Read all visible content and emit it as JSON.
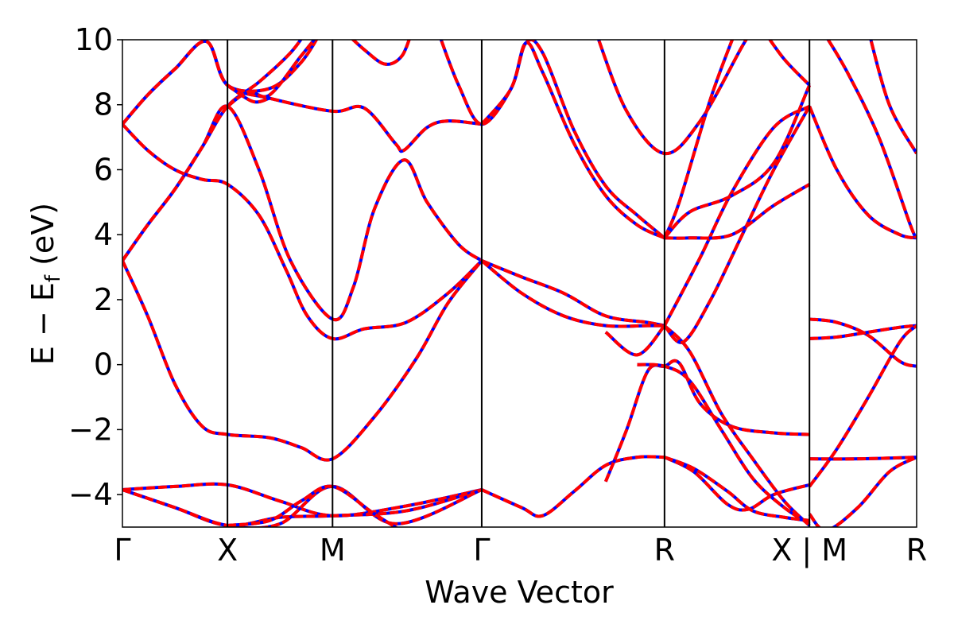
{
  "chart_data": {
    "type": "line",
    "title": "",
    "xlabel": "Wave Vector",
    "ylabel": "E − E_f (eV)",
    "ylabel_parts": {
      "main": "E − E",
      "sub": "f",
      "unit": " (eV)"
    },
    "ylim": [
      -5,
      10
    ],
    "xlim": [
      0,
      3.78
    ],
    "yticks": [
      -4,
      -2,
      0,
      2,
      4,
      6,
      8,
      10
    ],
    "ytick_labels": [
      "−4",
      "−2",
      "0",
      "2",
      "4",
      "6",
      "8",
      "10"
    ],
    "kpoints": [
      {
        "label": "Γ",
        "x": 0.0
      },
      {
        "label": "X",
        "x": 0.5
      },
      {
        "label": "M",
        "x": 1.0
      },
      {
        "label": "Γ",
        "x": 1.71
      },
      {
        "label": "R",
        "x": 2.58
      },
      {
        "label": "X | M",
        "x": 3.27
      },
      {
        "label": "R",
        "x": 3.78
      }
    ],
    "grid": false,
    "legend": "none",
    "colors": {
      "series_a": "#0000ff",
      "series_b": "#ff0000"
    },
    "series": [
      {
        "values": [
          [
            [
              0,
              -3.85
            ],
            [
              0.25,
              -3.75
            ],
            [
              0.5,
              -3.7
            ],
            [
              0.75,
              -4.2
            ],
            [
              1.0,
              -4.65
            ],
            [
              1.35,
              -4.35
            ],
            [
              1.71,
              -3.85
            ]
          ],
          [
            [
              0,
              -3.85
            ],
            [
              0.25,
              -4.4
            ],
            [
              0.5,
              -4.95
            ],
            [
              0.75,
              -4.7
            ],
            [
              1.0,
              -4.65
            ],
            [
              1.35,
              -4.5
            ],
            [
              1.71,
              -3.85
            ]
          ],
          [
            [
              0,
              -3.85
            ],
            [
              0.25,
              -4.4
            ],
            [
              0.5,
              -4.95
            ],
            [
              0.75,
              -4.9
            ],
            [
              1.0,
              -3.75
            ],
            [
              1.3,
              -4.9
            ],
            [
              1.71,
              -3.85
            ]
          ],
          [
            [
              0.5,
              -4.95
            ],
            [
              0.7,
              -4.8
            ],
            [
              0.85,
              -4.2
            ],
            [
              1.0,
              -3.75
            ],
            [
              1.2,
              -4.6
            ],
            [
              1.35,
              -5.2
            ]
          ],
          [
            [
              0,
              3.2
            ],
            [
              0.12,
              1.5
            ],
            [
              0.25,
              -0.6
            ],
            [
              0.38,
              -1.9
            ],
            [
              0.5,
              -2.15
            ],
            [
              0.7,
              -2.25
            ],
            [
              0.85,
              -2.55
            ],
            [
              1.0,
              -2.9
            ],
            [
              1.2,
              -1.6
            ],
            [
              1.4,
              0.2
            ],
            [
              1.55,
              1.9
            ],
            [
              1.71,
              3.2
            ]
          ],
          [
            [
              0,
              3.2
            ],
            [
              0.12,
              4.3
            ],
            [
              0.25,
              5.4
            ],
            [
              0.38,
              6.7
            ],
            [
              0.5,
              7.95
            ],
            [
              0.65,
              6.0
            ],
            [
              0.8,
              3.2
            ],
            [
              1.0,
              1.4
            ],
            [
              1.1,
              2.4
            ],
            [
              1.2,
              4.8
            ],
            [
              1.34,
              6.3
            ],
            [
              1.45,
              5.0
            ],
            [
              1.6,
              3.7
            ],
            [
              1.71,
              3.2
            ]
          ],
          [
            [
              0,
              3.2
            ],
            [
              0.12,
              4.3
            ],
            [
              0.25,
              5.4
            ],
            [
              0.38,
              6.7
            ],
            [
              0.5,
              7.95
            ],
            [
              0.65,
              8.7
            ],
            [
              0.8,
              9.6
            ],
            [
              0.88,
              10.3
            ]
          ],
          [
            [
              0,
              7.4
            ],
            [
              0.12,
              6.6
            ],
            [
              0.25,
              6.0
            ],
            [
              0.38,
              5.7
            ],
            [
              0.5,
              5.55
            ],
            [
              0.65,
              4.6
            ],
            [
              0.78,
              2.9
            ],
            [
              0.88,
              1.5
            ],
            [
              1.0,
              0.8
            ],
            [
              1.15,
              1.1
            ],
            [
              1.35,
              1.3
            ],
            [
              1.55,
              2.2
            ],
            [
              1.71,
              3.2
            ]
          ],
          [
            [
              0,
              7.4
            ],
            [
              0.12,
              8.3
            ],
            [
              0.25,
              9.1
            ],
            [
              0.4,
              9.95
            ],
            [
              0.5,
              8.6
            ],
            [
              0.7,
              8.2
            ],
            [
              1.0,
              7.8
            ],
            [
              1.15,
              7.9
            ],
            [
              1.3,
              6.8
            ],
            [
              1.34,
              6.6
            ],
            [
              1.45,
              7.3
            ],
            [
              1.55,
              7.5
            ],
            [
              1.71,
              7.4
            ]
          ],
          [
            [
              0,
              7.4
            ],
            [
              0.12,
              8.3
            ],
            [
              0.25,
              9.1
            ],
            [
              0.4,
              9.95
            ],
            [
              0.5,
              8.6
            ],
            [
              0.7,
              8.5
            ],
            [
              0.85,
              9.3
            ],
            [
              0.95,
              10.3
            ]
          ],
          [
            [
              0.5,
              7.95
            ],
            [
              0.6,
              8.4
            ],
            [
              0.7,
              8.3
            ],
            [
              0.85,
              9.5
            ],
            [
              0.95,
              10.3
            ]
          ],
          [
            [
              0.5,
              8.6
            ],
            [
              0.62,
              8.1
            ],
            [
              0.7,
              8.2
            ]
          ],
          [
            [
              1.05,
              10.3
            ],
            [
              1.15,
              9.7
            ],
            [
              1.25,
              9.25
            ],
            [
              1.33,
              9.5
            ],
            [
              1.38,
              10.3
            ]
          ],
          [
            [
              1.5,
              10.3
            ],
            [
              1.6,
              8.6
            ],
            [
              1.71,
              7.4
            ],
            [
              1.85,
              8.5
            ],
            [
              1.92,
              9.9
            ],
            [
              2.0,
              9.6
            ],
            [
              2.15,
              7.2
            ],
            [
              2.3,
              5.5
            ],
            [
              2.45,
              4.6
            ],
            [
              2.58,
              3.9
            ]
          ],
          [
            [
              1.71,
              7.4
            ],
            [
              1.85,
              8.5
            ],
            [
              1.92,
              9.9
            ],
            [
              2.0,
              9.0
            ],
            [
              2.15,
              6.8
            ],
            [
              2.3,
              5.2
            ],
            [
              2.45,
              4.3
            ],
            [
              2.58,
              3.9
            ]
          ],
          [
            [
              1.71,
              3.2
            ],
            [
              1.9,
              2.7
            ],
            [
              2.1,
              2.2
            ],
            [
              2.3,
              1.5
            ],
            [
              2.5,
              1.3
            ],
            [
              2.58,
              1.2
            ]
          ],
          [
            [
              1.71,
              3.2
            ],
            [
              1.9,
              2.2
            ],
            [
              2.1,
              1.5
            ],
            [
              2.3,
              1.2
            ],
            [
              2.5,
              1.2
            ],
            [
              2.58,
              1.2
            ]
          ],
          [
            [
              1.71,
              -3.85
            ],
            [
              1.9,
              -4.4
            ],
            [
              2.0,
              -4.65
            ],
            [
              2.15,
              -3.9
            ],
            [
              2.3,
              -3.1
            ],
            [
              2.45,
              -2.85
            ],
            [
              2.58,
              -2.85
            ]
          ],
          [
            [
              2.3,
              1.0
            ],
            [
              2.45,
              0.3
            ],
            [
              2.58,
              1.2
            ]
          ],
          [
            [
              2.3,
              -3.6
            ],
            [
              2.4,
              -2.0
            ],
            [
              2.5,
              -0.2
            ],
            [
              2.58,
              -0.05
            ],
            [
              2.65,
              0.05
            ],
            [
              2.75,
              -1.2
            ],
            [
              2.9,
              -1.9
            ],
            [
              3.1,
              -2.1
            ],
            [
              3.27,
              -2.15
            ]
          ],
          [
            [
              2.45,
              0.0
            ],
            [
              2.58,
              -0.05
            ],
            [
              2.7,
              -0.5
            ],
            [
              2.85,
              -2.0
            ],
            [
              3.0,
              -3.5
            ],
            [
              3.15,
              -4.4
            ],
            [
              3.27,
              -4.9
            ]
          ],
          [
            [
              2.58,
              1.2
            ],
            [
              2.7,
              0.4
            ],
            [
              2.85,
              -1.5
            ],
            [
              3.0,
              -2.9
            ],
            [
              3.15,
              -4.2
            ],
            [
              3.27,
              -4.95
            ]
          ],
          [
            [
              2.58,
              1.2
            ],
            [
              2.67,
              0.7
            ],
            [
              2.8,
              2.0
            ],
            [
              2.95,
              4.0
            ],
            [
              3.1,
              6.0
            ],
            [
              3.27,
              7.95
            ]
          ],
          [
            [
              2.58,
              1.2
            ],
            [
              2.75,
              3.3
            ],
            [
              2.9,
              5.3
            ],
            [
              3.1,
              7.3
            ],
            [
              3.27,
              7.95
            ]
          ],
          [
            [
              2.58,
              -2.85
            ],
            [
              2.72,
              -3.3
            ],
            [
              2.88,
              -4.3
            ],
            [
              2.98,
              -4.45
            ],
            [
              3.1,
              -4.0
            ],
            [
              3.27,
              -3.7
            ]
          ],
          [
            [
              2.58,
              -2.85
            ],
            [
              2.72,
              -3.2
            ],
            [
              2.88,
              -3.9
            ],
            [
              3.0,
              -4.5
            ],
            [
              3.15,
              -4.7
            ],
            [
              3.27,
              -4.8
            ]
          ],
          [
            [
              2.58,
              3.9
            ],
            [
              2.7,
              3.9
            ],
            [
              2.9,
              4.0
            ],
            [
              3.1,
              4.9
            ],
            [
              3.27,
              5.55
            ]
          ],
          [
            [
              2.58,
              3.9
            ],
            [
              2.7,
              4.7
            ],
            [
              2.9,
              5.2
            ],
            [
              3.1,
              6.2
            ],
            [
              3.27,
              8.6
            ]
          ],
          [
            [
              2.25,
              10.3
            ],
            [
              2.4,
              7.8
            ],
            [
              2.58,
              6.5
            ],
            [
              2.75,
              7.5
            ],
            [
              2.95,
              9.8
            ],
            [
              3.0,
              10.3
            ]
          ],
          [
            [
              2.58,
              3.9
            ],
            [
              2.65,
              5.0
            ],
            [
              2.8,
              8.2
            ],
            [
              2.92,
              10.3
            ]
          ],
          [
            [
              3.05,
              10.3
            ],
            [
              3.15,
              9.4
            ],
            [
              3.27,
              8.6
            ]
          ],
          [
            [
              3.27,
              1.4
            ],
            [
              3.4,
              1.3
            ],
            [
              3.55,
              0.9
            ],
            [
              3.7,
              0.1
            ],
            [
              3.78,
              -0.05
            ]
          ],
          [
            [
              3.27,
              0.8
            ],
            [
              3.4,
              0.85
            ],
            [
              3.55,
              1.0
            ],
            [
              3.7,
              1.15
            ],
            [
              3.78,
              1.2
            ]
          ],
          [
            [
              3.27,
              -2.9
            ],
            [
              3.5,
              -2.9
            ],
            [
              3.78,
              -2.85
            ]
          ],
          [
            [
              3.27,
              -3.75
            ],
            [
              3.4,
              -2.6
            ],
            [
              3.55,
              -1.0
            ],
            [
              3.7,
              0.7
            ],
            [
              3.78,
              1.2
            ]
          ],
          [
            [
              3.27,
              -4.6
            ],
            [
              3.35,
              -5.1
            ],
            [
              3.5,
              -4.4
            ],
            [
              3.65,
              -3.3
            ],
            [
              3.78,
              -2.85
            ]
          ],
          [
            [
              3.27,
              7.95
            ],
            [
              3.4,
              6.0
            ],
            [
              3.55,
              4.6
            ],
            [
              3.7,
              4.0
            ],
            [
              3.78,
              3.9
            ]
          ],
          [
            [
              3.33,
              10.3
            ],
            [
              3.45,
              9.0
            ],
            [
              3.6,
              7.0
            ],
            [
              3.75,
              4.3
            ],
            [
              3.78,
              3.9
            ]
          ],
          [
            [
              3.55,
              10.3
            ],
            [
              3.65,
              8.0
            ],
            [
              3.78,
              6.5
            ]
          ]
        ]
      }
    ]
  }
}
